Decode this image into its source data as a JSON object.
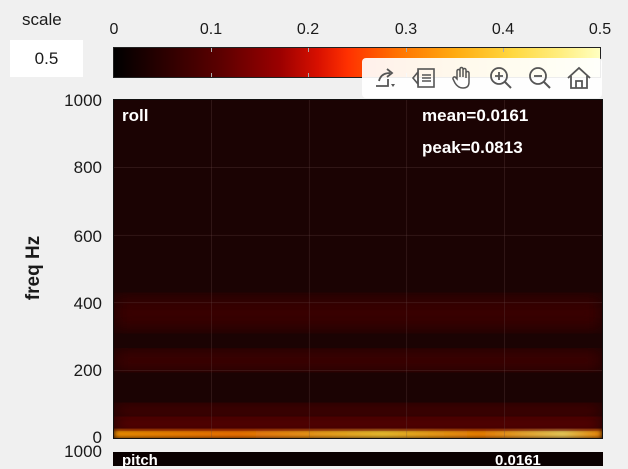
{
  "scale": {
    "label": "scale",
    "value": "0.5"
  },
  "colorbar": {
    "ticks": [
      "0",
      "0.1",
      "0.2",
      "0.3",
      "0.4",
      "0.5"
    ],
    "range": [
      0,
      0.5
    ],
    "colormap": "hot"
  },
  "toolbar": {
    "icons": [
      "export-icon",
      "brush-icon",
      "pan-hand-icon",
      "zoom-in-icon",
      "zoom-out-icon",
      "home-icon"
    ]
  },
  "plot": {
    "title": "roll",
    "mean": "mean=0.0161",
    "peak": "peak=0.0813",
    "ylabel": "freq Hz",
    "yticks": [
      "1000",
      "800",
      "600",
      "400",
      "200",
      "0"
    ]
  },
  "second_plot": {
    "ytick": "1000",
    "title": "pitch",
    "value": "0.0161"
  },
  "chart_data": {
    "type": "heatmap",
    "title": "roll",
    "ylabel": "freq Hz",
    "ylim": [
      0,
      1000
    ],
    "color_range": [
      0,
      0.5
    ],
    "colormap": "hot",
    "annotations": [
      "mean=0.0161",
      "peak=0.0813"
    ],
    "bands": [
      {
        "freq_low": 0,
        "freq_high": 25,
        "intensity": 0.3
      },
      {
        "freq_low": 25,
        "freq_high": 60,
        "intensity": 0.1
      },
      {
        "freq_low": 60,
        "freq_high": 100,
        "intensity": 0.06
      },
      {
        "freq_low": 200,
        "freq_high": 260,
        "intensity": 0.05
      },
      {
        "freq_low": 320,
        "freq_high": 420,
        "intensity": 0.045
      }
    ]
  }
}
